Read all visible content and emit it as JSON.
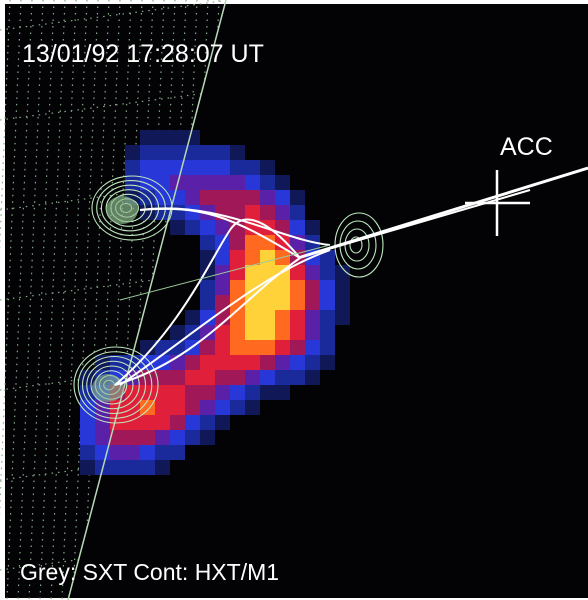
{
  "timestamp": "13/01/92  17:28:07 UT",
  "source_label": "ACC",
  "legend": "Grey: SXT  Cont: HXT/M1"
}
